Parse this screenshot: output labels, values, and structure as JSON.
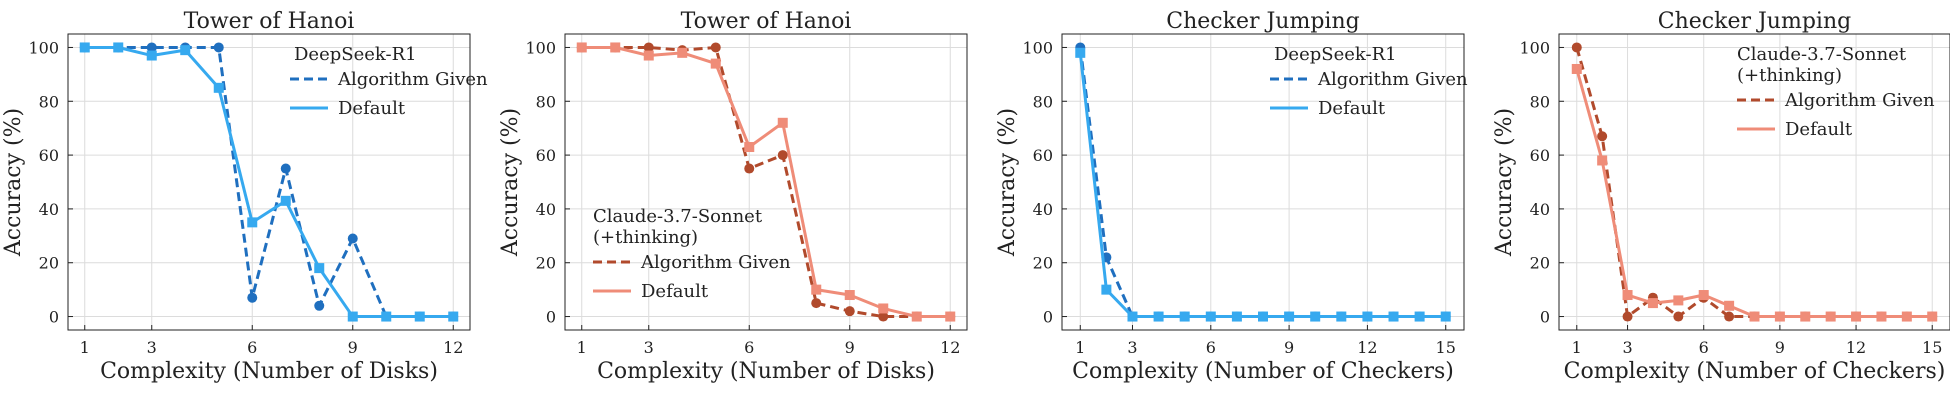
{
  "chart_data": [
    {
      "type": "line",
      "title": "Tower of Hanoi",
      "xlabel": "Complexity (Number of Disks)",
      "ylabel": "Accuracy (%)",
      "xlim": [
        0.5,
        12.5
      ],
      "ylim": [
        -5,
        105
      ],
      "xticks": [
        1,
        3,
        6,
        9,
        12
      ],
      "yticks": [
        0,
        20,
        40,
        60,
        80,
        100
      ],
      "grid": true,
      "legend": {
        "title": "DeepSeek-R1",
        "placement": "top-right"
      },
      "series": [
        {
          "name": "Algorithm Given",
          "style": "dashed",
          "marker": "circle",
          "color": "#1f6fbf",
          "x": [
            1,
            2,
            3,
            4,
            5,
            6,
            7,
            8,
            9,
            10,
            11,
            12
          ],
          "y": [
            100,
            100,
            100,
            100,
            100,
            7,
            55,
            4,
            29,
            0,
            0,
            0
          ]
        },
        {
          "name": "Default",
          "style": "solid",
          "marker": "square",
          "color": "#36a9ef",
          "x": [
            1,
            2,
            3,
            4,
            5,
            6,
            7,
            8,
            9,
            10,
            11,
            12
          ],
          "y": [
            100,
            100,
            97,
            99,
            85,
            35,
            43,
            18,
            0,
            0,
            0,
            0
          ]
        }
      ]
    },
    {
      "type": "line",
      "title": "Tower of Hanoi",
      "xlabel": "Complexity (Number of Disks)",
      "ylabel": "Accuracy (%)",
      "xlim": [
        0.5,
        12.5
      ],
      "ylim": [
        -5,
        105
      ],
      "xticks": [
        1,
        3,
        6,
        9,
        12
      ],
      "yticks": [
        0,
        20,
        40,
        60,
        80,
        100
      ],
      "grid": true,
      "legend": {
        "title": "Claude-3.7-Sonnet\n(+thinking)",
        "placement": "center-left"
      },
      "series": [
        {
          "name": "Algorithm Given",
          "style": "dashed",
          "marker": "circle",
          "color": "#b14a2c",
          "x": [
            1,
            2,
            3,
            4,
            5,
            6,
            7,
            8,
            9,
            10,
            11,
            12
          ],
          "y": [
            100,
            100,
            100,
            99,
            100,
            55,
            60,
            5,
            2,
            0,
            0,
            0
          ]
        },
        {
          "name": "Default",
          "style": "solid",
          "marker": "square",
          "color": "#ef8c78",
          "x": [
            1,
            2,
            3,
            4,
            5,
            6,
            7,
            8,
            9,
            10,
            11,
            12
          ],
          "y": [
            100,
            100,
            97,
            98,
            94,
            63,
            72,
            10,
            8,
            3,
            0,
            0
          ]
        }
      ]
    },
    {
      "type": "line",
      "title": "Checker Jumping",
      "xlabel": "Complexity (Number of Checkers)",
      "ylabel": "Accuracy (%)",
      "xlim": [
        0.3,
        15.7
      ],
      "ylim": [
        -5,
        105
      ],
      "xticks": [
        1,
        3,
        6,
        9,
        12,
        15
      ],
      "yticks": [
        0,
        20,
        40,
        60,
        80,
        100
      ],
      "grid": true,
      "legend": {
        "title": "DeepSeek-R1",
        "placement": "top-right"
      },
      "series": [
        {
          "name": "Algorithm Given",
          "style": "dashed",
          "marker": "circle",
          "color": "#1f6fbf",
          "x": [
            1,
            2,
            3,
            4,
            5,
            6,
            7,
            8,
            9,
            10,
            11,
            12,
            13,
            14,
            15
          ],
          "y": [
            100,
            22,
            0,
            0,
            0,
            0,
            0,
            0,
            0,
            0,
            0,
            0,
            0,
            0,
            0
          ]
        },
        {
          "name": "Default",
          "style": "solid",
          "marker": "square",
          "color": "#36a9ef",
          "x": [
            1,
            2,
            3,
            4,
            5,
            6,
            7,
            8,
            9,
            10,
            11,
            12,
            13,
            14,
            15
          ],
          "y": [
            98,
            10,
            0,
            0,
            0,
            0,
            0,
            0,
            0,
            0,
            0,
            0,
            0,
            0,
            0
          ]
        }
      ]
    },
    {
      "type": "line",
      "title": "Checker Jumping",
      "xlabel": "Complexity (Number of Checkers)",
      "ylabel": "Accuracy (%)",
      "xlim": [
        0.3,
        15.7
      ],
      "ylim": [
        -5,
        105
      ],
      "xticks": [
        1,
        3,
        6,
        9,
        12,
        15
      ],
      "yticks": [
        0,
        20,
        40,
        60,
        80,
        100
      ],
      "grid": true,
      "legend": {
        "title": "Claude-3.7-Sonnet\n(+thinking)",
        "placement": "top-right"
      },
      "series": [
        {
          "name": "Algorithm Given",
          "style": "dashed",
          "marker": "circle",
          "color": "#b14a2c",
          "x": [
            1,
            2,
            3,
            4,
            5,
            6,
            7,
            8,
            9,
            10,
            11,
            12,
            13,
            14,
            15
          ],
          "y": [
            100,
            67,
            0,
            7,
            0,
            7,
            0,
            0,
            0,
            0,
            0,
            0,
            0,
            0,
            0
          ]
        },
        {
          "name": "Default",
          "style": "solid",
          "marker": "square",
          "color": "#ef8c78",
          "x": [
            1,
            2,
            3,
            4,
            5,
            6,
            7,
            8,
            9,
            10,
            11,
            12,
            13,
            14,
            15
          ],
          "y": [
            92,
            58,
            8,
            5,
            6,
            8,
            4,
            0,
            0,
            0,
            0,
            0,
            0,
            0,
            0
          ]
        }
      ]
    }
  ]
}
